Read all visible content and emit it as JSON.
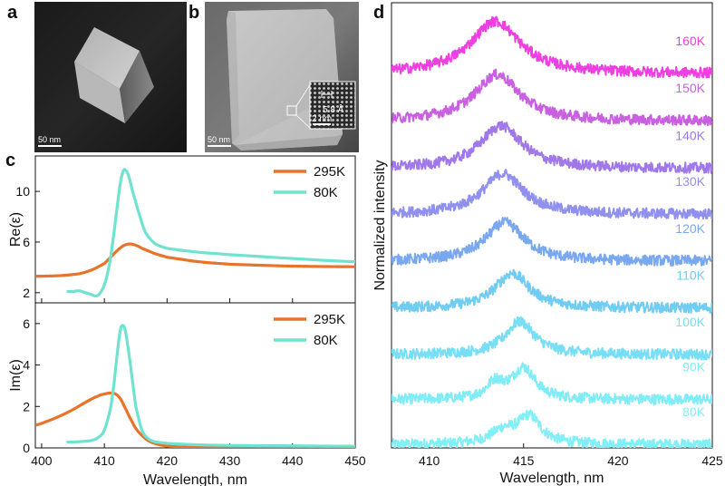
{
  "panels": {
    "a": {
      "label": "a",
      "scale_bar": "50 nm"
    },
    "b": {
      "label": "b",
      "scale_bar": "50 nm",
      "inset_lattice": "5.8 Å",
      "inset_scale": "2 nm"
    },
    "c": {
      "label": "c"
    },
    "d": {
      "label": "d"
    }
  },
  "colors": {
    "c295": "#e8732a",
    "c80": "#6fe3cf"
  },
  "chart_data": [
    {
      "type": "line",
      "panel": "c-top",
      "title": "",
      "xlabel": "",
      "ylabel": "Re(ε)",
      "xlim": [
        399,
        450
      ],
      "ylim": [
        1.2,
        12.8
      ],
      "yticks": [
        2,
        6,
        10
      ],
      "series": [
        {
          "name": "295K",
          "color": "#e8732a",
          "x": [
            399,
            403,
            406,
            408,
            410,
            411,
            412,
            413,
            414,
            415,
            416,
            418,
            420,
            425,
            430,
            440,
            450
          ],
          "y": [
            3.3,
            3.35,
            3.5,
            3.8,
            4.3,
            4.8,
            5.3,
            5.7,
            5.85,
            5.75,
            5.5,
            5.1,
            4.8,
            4.45,
            4.25,
            4.1,
            4.05
          ]
        },
        {
          "name": "80K",
          "color": "#6fe3cf",
          "x": [
            404,
            405,
            406,
            407,
            408,
            408.5,
            409,
            409.5,
            410,
            410.5,
            411,
            411.5,
            412,
            412.5,
            413,
            413.3,
            413.8,
            414.5,
            415.5,
            416.5,
            418,
            420,
            425,
            430,
            440,
            450
          ],
          "y": [
            2.1,
            2.1,
            2.15,
            2.0,
            1.85,
            1.75,
            1.8,
            2.1,
            2.6,
            3.5,
            4.8,
            6.6,
            8.6,
            10.5,
            11.6,
            11.7,
            11.3,
            10.0,
            8.3,
            6.8,
            5.9,
            5.5,
            5.2,
            5.0,
            4.7,
            4.45
          ]
        }
      ]
    },
    {
      "type": "line",
      "panel": "c-bottom",
      "title": "",
      "xlabel": "Wavelength, nm",
      "ylabel": "Im(ε)",
      "xlim": [
        399,
        450
      ],
      "ylim": [
        0,
        7
      ],
      "yticks": [
        0,
        2,
        4,
        6
      ],
      "xticks": [
        400,
        410,
        420,
        430,
        440,
        450
      ],
      "series": [
        {
          "name": "295K",
          "color": "#e8732a",
          "x": [
            399,
            401,
            403,
            405,
            407,
            409,
            410,
            411,
            411.8,
            412.5,
            413.2,
            414,
            415,
            416,
            417,
            418,
            419,
            420,
            422,
            425,
            430,
            440,
            450
          ],
          "y": [
            1.1,
            1.3,
            1.55,
            1.85,
            2.2,
            2.5,
            2.6,
            2.65,
            2.6,
            2.4,
            2.0,
            1.5,
            0.95,
            0.6,
            0.35,
            0.22,
            0.14,
            0.09,
            0.05,
            0.02,
            0.0,
            0.0,
            0.0
          ]
        },
        {
          "name": "80K",
          "color": "#6fe3cf",
          "x": [
            404,
            406,
            408,
            409,
            410,
            411,
            411.5,
            412,
            412.5,
            412.8,
            413.3,
            414,
            414.5,
            415,
            416,
            417,
            418,
            420,
            425,
            430,
            440,
            450
          ],
          "y": [
            0.28,
            0.3,
            0.36,
            0.5,
            0.85,
            1.9,
            3.0,
            4.4,
            5.6,
            5.9,
            5.7,
            4.4,
            3.2,
            2.0,
            0.85,
            0.45,
            0.3,
            0.22,
            0.15,
            0.12,
            0.1,
            0.08
          ]
        }
      ]
    },
    {
      "type": "line",
      "panel": "d",
      "title": "",
      "xlabel": "Wavelength, nm",
      "ylabel": "Normalized intensity",
      "xlim": [
        408,
        425
      ],
      "ylim": [
        0,
        9.4
      ],
      "xticks": [
        410,
        415,
        420,
        425
      ],
      "series": [
        {
          "name": "80K",
          "color": "#80f0f6",
          "offset": 0.0,
          "baseline": 0.07,
          "amplitude": 0.7,
          "peaks": [
            [
              413.9,
              0.8,
              0.45
            ],
            [
              415.3,
              0.75,
              1.0
            ]
          ]
        },
        {
          "name": "90K",
          "color": "#80ecf6",
          "offset": 0.95,
          "baseline": 0.07,
          "amplitude": 0.8,
          "peaks": [
            [
              413.5,
              0.55,
              0.5
            ],
            [
              415.0,
              0.75,
              1.0
            ]
          ]
        },
        {
          "name": "100K",
          "color": "#78def6",
          "offset": 1.9,
          "baseline": 0.07,
          "amplitude": 0.85,
          "peaks": [
            [
              414.8,
              0.95,
              1.0
            ]
          ]
        },
        {
          "name": "110K",
          "color": "#70ccf2",
          "offset": 2.85,
          "baseline": 0.1,
          "amplitude": 0.9,
          "peaks": [
            [
              414.4,
              1.1,
              1.0
            ]
          ]
        },
        {
          "name": "120K",
          "color": "#7aa8ee",
          "offset": 3.8,
          "baseline": 0.14,
          "amplitude": 1.0,
          "peaks": [
            [
              414.0,
              1.25,
              1.0
            ]
          ]
        },
        {
          "name": "130K",
          "color": "#9090ee",
          "offset": 4.75,
          "baseline": 0.18,
          "amplitude": 1.05,
          "peaks": [
            [
              413.9,
              1.3,
              1.0
            ]
          ]
        },
        {
          "name": "140K",
          "color": "#a078ea",
          "offset": 5.7,
          "baseline": 0.2,
          "amplitude": 1.1,
          "peaks": [
            [
              413.8,
              1.35,
              1.0
            ]
          ]
        },
        {
          "name": "150K",
          "color": "#c860e0",
          "offset": 6.65,
          "baseline": 0.25,
          "amplitude": 1.2,
          "peaks": [
            [
              413.6,
              1.45,
              1.0
            ]
          ]
        },
        {
          "name": "160K",
          "color": "#ec40e0",
          "offset": 7.6,
          "baseline": 0.3,
          "amplitude": 1.35,
          "peaks": [
            [
              413.5,
              1.6,
              1.0
            ]
          ]
        }
      ]
    }
  ]
}
